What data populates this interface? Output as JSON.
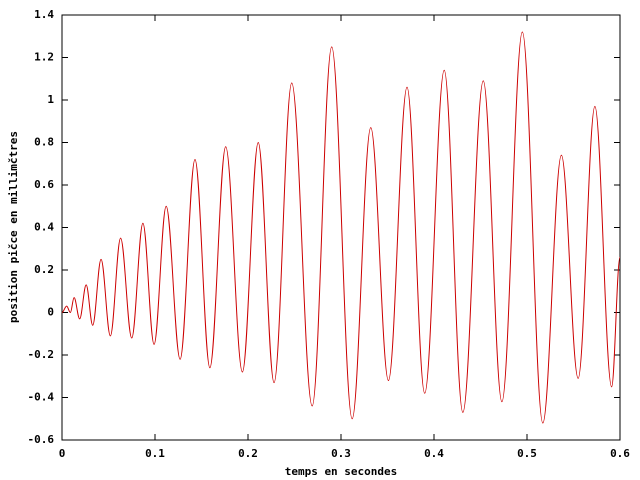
{
  "chart_data": {
    "type": "line",
    "xlabel": "temps en secondes",
    "ylabel": "position pičce en millimčtres",
    "xlim": [
      0,
      0.6
    ],
    "xticks": [
      0,
      0.1,
      0.2,
      0.3,
      0.4,
      0.5,
      0.6
    ],
    "ylim": [
      -0.6,
      1.4
    ],
    "yticks": [
      -0.6,
      -0.4,
      -0.2,
      0,
      0.2,
      0.4,
      0.6,
      0.8,
      1,
      1.2,
      1.4
    ],
    "grid": false,
    "series": [
      {
        "color": "#cc0000",
        "x": [
          0,
          0.005,
          0.009,
          0.013,
          0.019,
          0.026,
          0.033,
          0.042,
          0.052,
          0.063,
          0.075,
          0.087,
          0.099,
          0.112,
          0.127,
          0.143,
          0.159,
          0.176,
          0.194,
          0.211,
          0.228,
          0.247,
          0.269,
          0.29,
          0.312,
          0.332,
          0.351,
          0.371,
          0.39,
          0.411,
          0.431,
          0.453,
          0.473,
          0.495,
          0.517,
          0.537,
          0.555,
          0.573,
          0.591,
          0.6
        ],
        "values": [
          0,
          0.03,
          0,
          0.07,
          -0.03,
          0.13,
          -0.06,
          0.25,
          -0.11,
          0.35,
          -0.12,
          0.42,
          -0.15,
          0.5,
          -0.22,
          0.72,
          -0.26,
          0.78,
          -0.28,
          0.8,
          -0.33,
          1.08,
          -0.44,
          1.25,
          -0.5,
          0.87,
          -0.32,
          1.06,
          -0.38,
          1.14,
          -0.47,
          1.09,
          -0.42,
          1.32,
          -0.52,
          0.74,
          -0.31,
          0.97,
          -0.35,
          0.26
        ]
      }
    ]
  }
}
